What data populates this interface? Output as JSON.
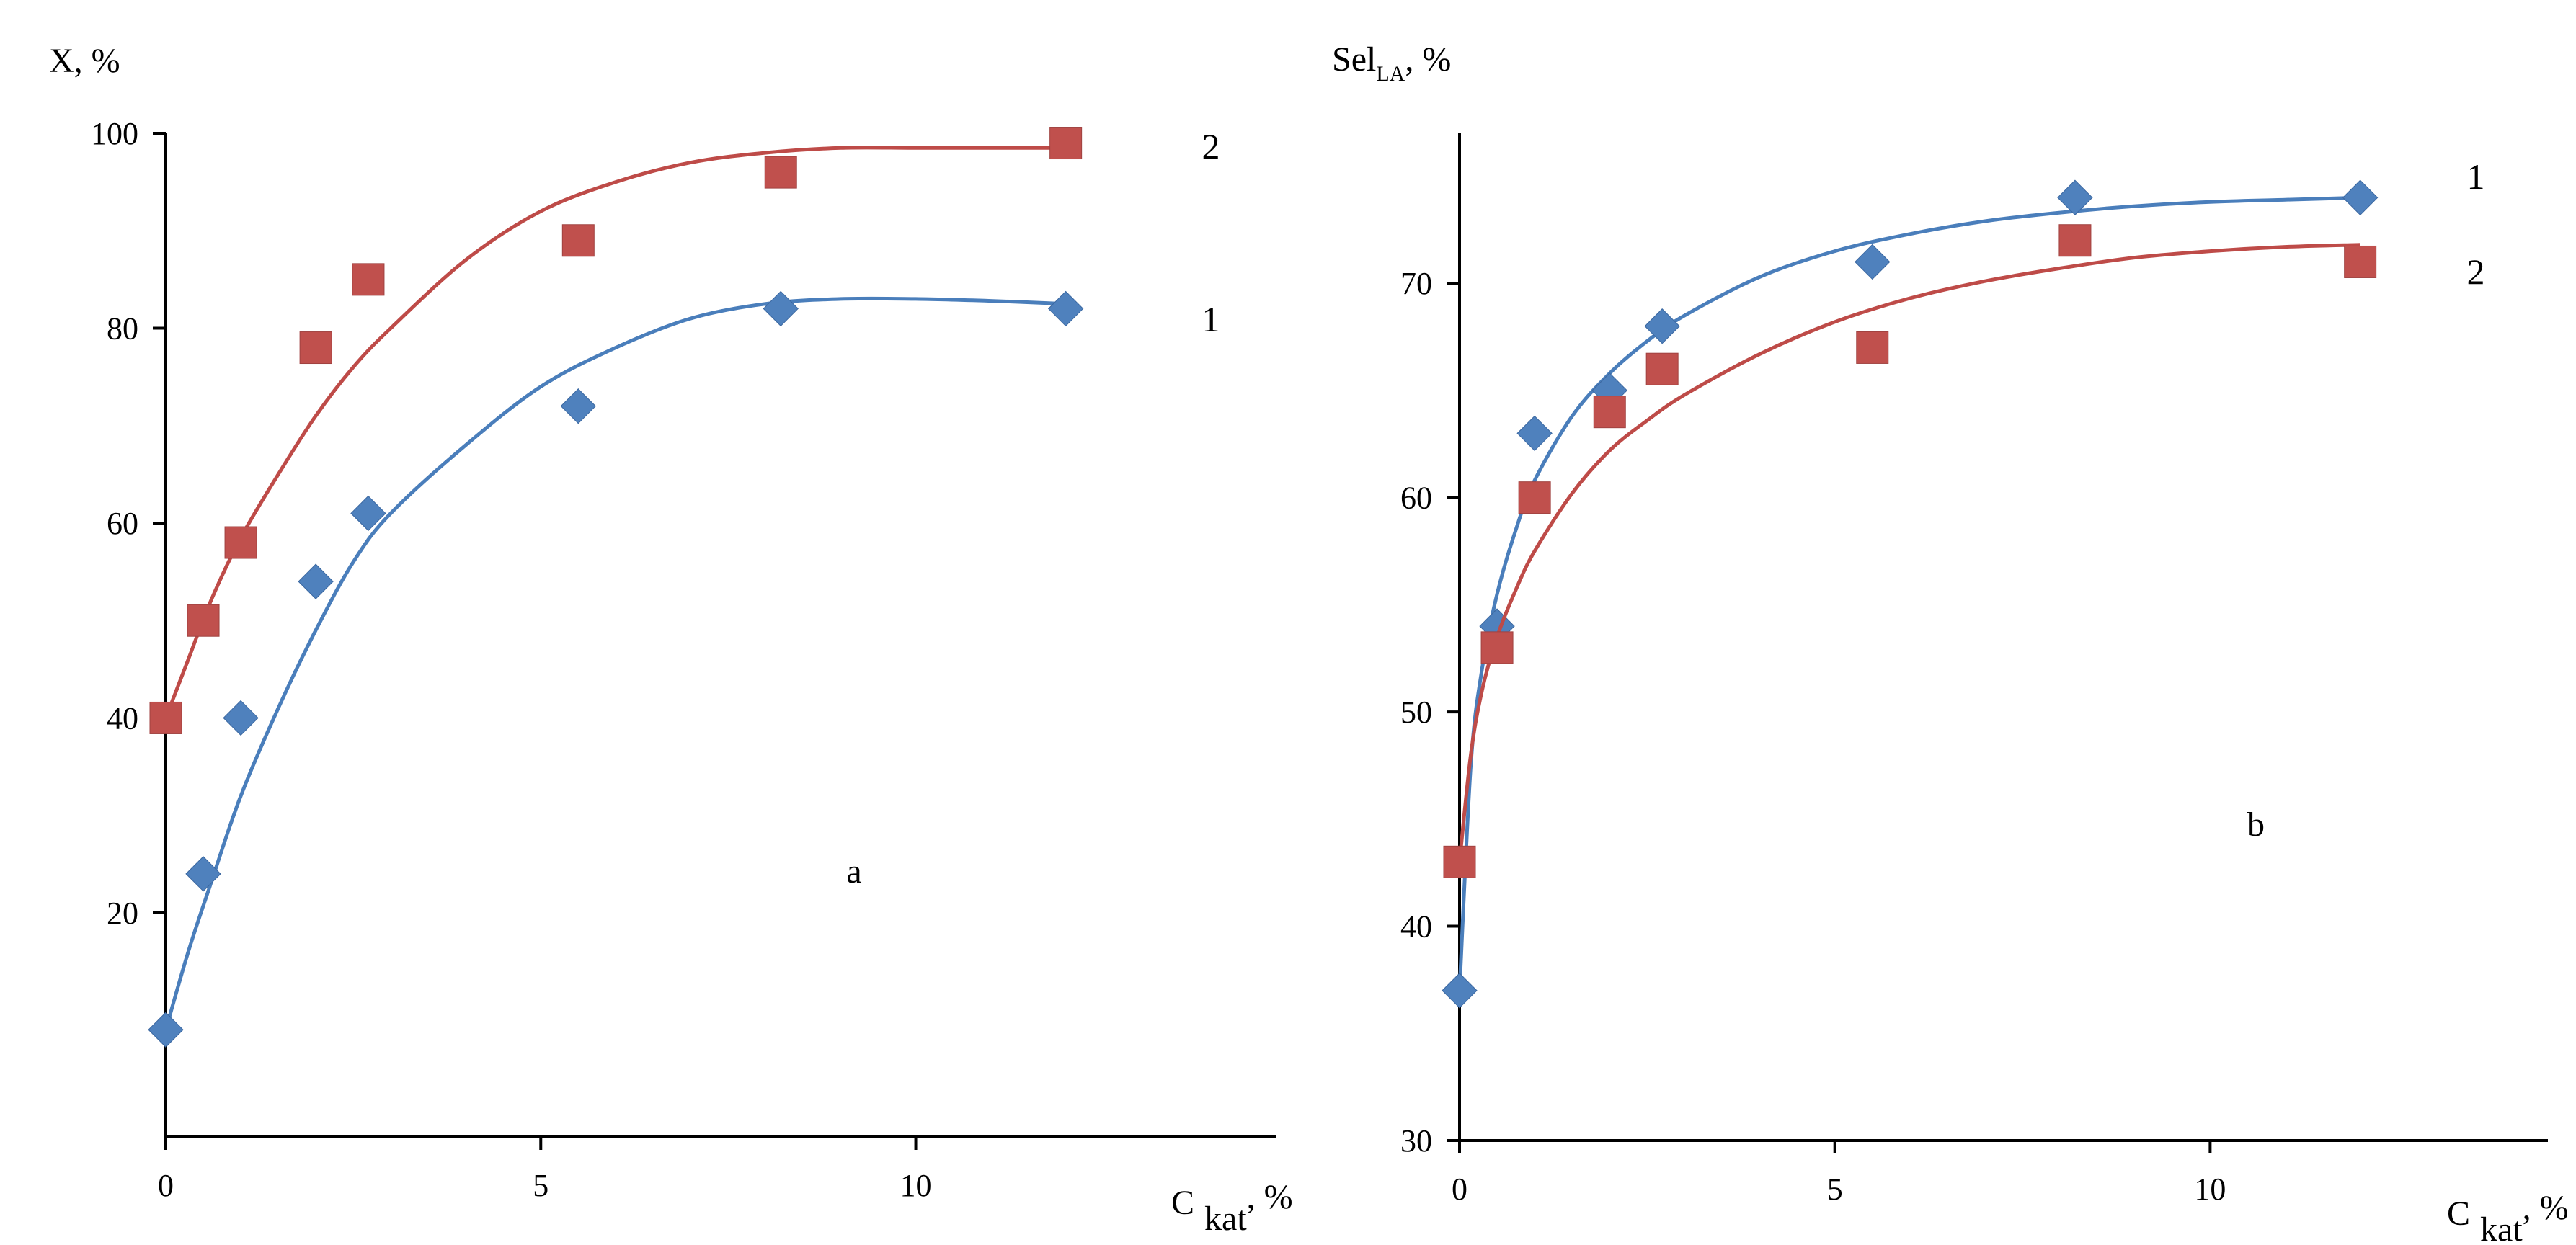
{
  "colors": {
    "series1": "#4a7ebb",
    "series2": "#be4b48",
    "marker1": "#4f81bd",
    "marker2": "#c0504d",
    "axis": "#000000"
  },
  "chart_data": [
    {
      "type": "scatter",
      "panel_label": "a",
      "title": "",
      "ylabel": "X, %",
      "xlabel": {
        "main": "C",
        "sub": "kat",
        "suffix": ", %"
      },
      "xlim": [
        0,
        14.8
      ],
      "ylim": [
        -3,
        100
      ],
      "xticks": [
        0,
        5,
        10
      ],
      "yticks": [
        20,
        40,
        60,
        80,
        100
      ],
      "grid": false,
      "series": [
        {
          "name": "1",
          "marker": "diamond",
          "color_key": "series1",
          "x": [
            0,
            0.5,
            1,
            2,
            2.7,
            5.5,
            8.2,
            12
          ],
          "y": [
            8,
            24,
            40,
            54,
            61,
            72,
            82,
            82
          ],
          "curve": {
            "x": [
              0,
              0.3,
              0.6,
              1,
              1.5,
              2,
              2.5,
              3,
              4,
              5,
              6,
              7,
              8,
              9,
              10,
              11,
              12
            ],
            "y": [
              8,
              16,
              23,
              32,
              41,
              49,
              56,
              61,
              68,
              74,
              78,
              81,
              82.5,
              83,
              83,
              82.8,
              82.5
            ]
          }
        },
        {
          "name": "2",
          "marker": "square",
          "color_key": "series2",
          "x": [
            0,
            0.5,
            1,
            2,
            2.7,
            5.5,
            8.2,
            12
          ],
          "y": [
            40,
            50,
            58,
            78,
            85,
            89,
            96,
            99
          ],
          "curve": {
            "x": [
              0,
              0.3,
              0.6,
              1,
              1.5,
              2,
              2.5,
              3,
              4,
              5,
              6,
              7,
              8,
              9,
              10,
              11,
              12
            ],
            "y": [
              40,
              46,
              52,
              58.5,
              65,
              71,
              76,
              80,
              87,
              92,
              95,
              97,
              98,
              98.5,
              98.5,
              98.5,
              98.5
            ]
          }
        }
      ]
    },
    {
      "type": "scatter",
      "panel_label": "b",
      "title": "",
      "ylabel": {
        "main": "Sel",
        "sub": "LA",
        "suffix": ", %"
      },
      "xlabel": {
        "main": "C",
        "sub": "kat",
        "suffix": ", %"
      },
      "xlim": [
        0,
        14.5
      ],
      "ylim": [
        30,
        77
      ],
      "xticks": [
        0,
        5,
        10
      ],
      "yticks": [
        30,
        40,
        50,
        60,
        70
      ],
      "grid": false,
      "series": [
        {
          "name": "1",
          "marker": "diamond",
          "color_key": "series1",
          "x": [
            0,
            0.5,
            1,
            2,
            2.7,
            5.5,
            8.2,
            12
          ],
          "y": [
            37,
            54,
            63,
            65,
            68,
            71,
            74,
            74
          ],
          "curve": {
            "x": [
              0,
              0.15,
              0.3,
              0.5,
              0.75,
              1,
              1.5,
              2,
              2.5,
              3,
              4,
              5,
              6,
              7,
              8,
              9,
              10,
              11,
              12
            ],
            "y": [
              37,
              47.5,
              52,
              55.5,
              58.5,
              60.8,
              63.8,
              65.8,
              67.3,
              68.5,
              70.3,
              71.5,
              72.3,
              72.9,
              73.3,
              73.6,
              73.8,
              73.9,
              74
            ]
          }
        },
        {
          "name": "2",
          "marker": "square",
          "color_key": "series2",
          "x": [
            0,
            0.5,
            1,
            2,
            2.7,
            5.5,
            8.2,
            12
          ],
          "y": [
            43,
            53,
            60,
            64,
            66,
            67,
            72,
            71
          ],
          "curve": {
            "x": [
              0,
              0.15,
              0.3,
              0.5,
              0.75,
              1,
              1.5,
              2,
              2.5,
              3,
              4,
              5,
              6,
              7,
              8,
              9,
              10,
              11,
              12
            ],
            "y": [
              43,
              48,
              51,
              53.5,
              55.7,
              57.5,
              60.2,
              62.2,
              63.6,
              64.8,
              66.7,
              68.2,
              69.3,
              70.1,
              70.7,
              71.2,
              71.5,
              71.7,
              71.8
            ]
          }
        }
      ]
    }
  ]
}
